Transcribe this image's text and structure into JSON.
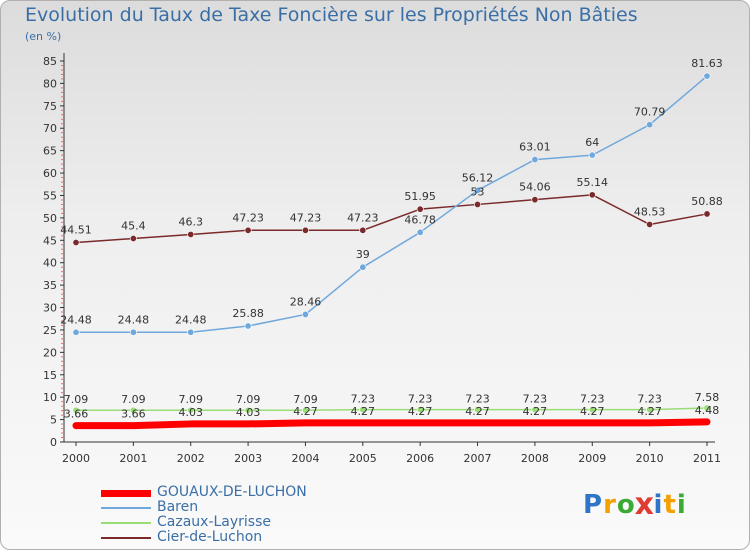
{
  "chart_data": {
    "type": "line",
    "title": "Evolution du Taux de Taxe Foncière sur les Propriétés Non Bâties",
    "subtitle": "(en %)",
    "x": [
      "2000",
      "2001",
      "2002",
      "2003",
      "2004",
      "2005",
      "2006",
      "2007",
      "2008",
      "2009",
      "2010",
      "2011"
    ],
    "ylim": [
      0,
      85
    ],
    "yticks": [
      0,
      5,
      10,
      15,
      20,
      25,
      30,
      35,
      40,
      45,
      50,
      55,
      60,
      65,
      70,
      75,
      80,
      85
    ],
    "grid": false,
    "legend_position": "bottom-left",
    "series": [
      {
        "name": "GOUAUX-DE-LUCHON",
        "color": "#ff0000",
        "values": [
          3.66,
          3.66,
          4.03,
          4.03,
          4.27,
          4.27,
          4.27,
          4.27,
          4.27,
          4.27,
          4.27,
          4.48
        ],
        "labels": [
          "3.66",
          "3.66",
          "4.03",
          "4.03",
          "4.27",
          "4.27",
          "4.27",
          "4.27",
          "4.27",
          "4.27",
          "4.27",
          "4.48"
        ]
      },
      {
        "name": "Baren",
        "color": "#6fa8dc",
        "values": [
          24.48,
          24.48,
          24.48,
          25.88,
          28.46,
          39,
          46.78,
          56.12,
          63.01,
          64,
          70.79,
          81.63
        ],
        "labels": [
          "24.48",
          "24.48",
          "24.48",
          "25.88",
          "28.46",
          "39",
          "46.78",
          "56.12",
          "63.01",
          "64",
          "70.79",
          "81.63"
        ]
      },
      {
        "name": "Cazaux-Layrisse",
        "color": "#99dd77",
        "values": [
          7.09,
          7.09,
          7.09,
          7.09,
          7.09,
          7.23,
          7.23,
          7.23,
          7.23,
          7.23,
          7.23,
          7.58
        ],
        "labels": [
          "7.09",
          "7.09",
          "7.09",
          "7.09",
          "7.09",
          "7.23",
          "7.23",
          "7.23",
          "7.23",
          "7.23",
          "7.23",
          "7.58"
        ]
      },
      {
        "name": "Cier-de-Luchon",
        "color": "#7a2a2a",
        "values": [
          44.51,
          45.4,
          46.3,
          47.23,
          47.23,
          47.23,
          51.95,
          53,
          54.06,
          55.14,
          48.53,
          50.88
        ],
        "labels": [
          "44.51",
          "45.4",
          "46.3",
          "47.23",
          "47.23",
          "47.23",
          "51.95",
          "53",
          "54.06",
          "55.14",
          "48.53",
          "50.88"
        ]
      }
    ]
  },
  "brand": {
    "letters": [
      "P",
      "r",
      "o",
      "x",
      "i",
      "t",
      "i"
    ],
    "colors": [
      "#2e75c7",
      "#f2a100",
      "#3aaa35",
      "#e03c31",
      "#2e75c7",
      "#f2a100",
      "#3aaa35"
    ]
  }
}
